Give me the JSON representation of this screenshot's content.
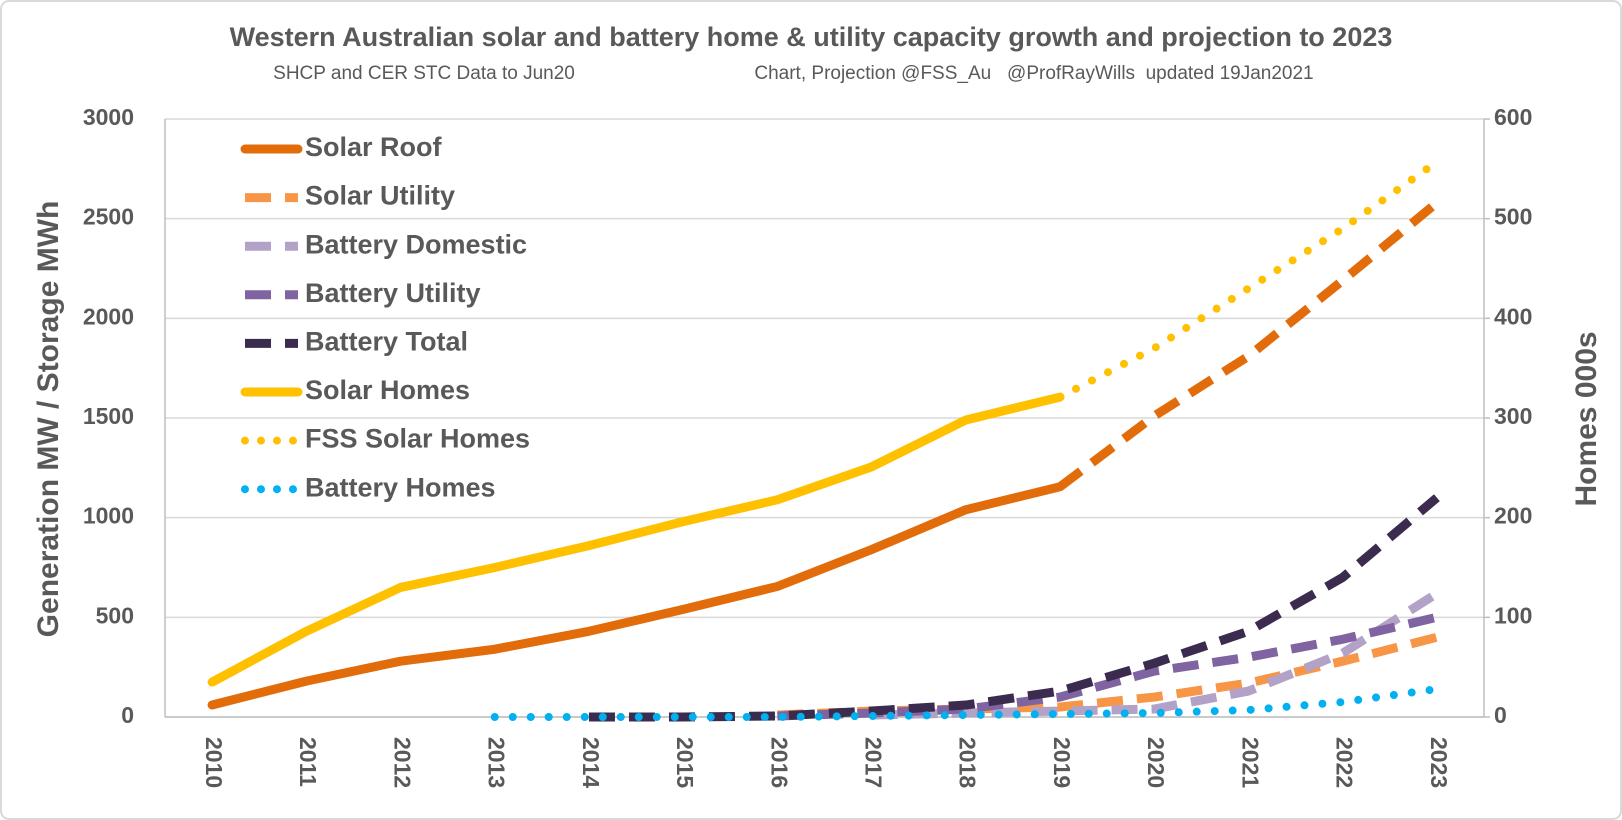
{
  "chart_data": {
    "type": "line",
    "title": "Western Australian solar and battery home & utility capacity growth and projection to 2023",
    "subtitles": [
      "SHCP and CER STC Data to Jun20",
      "Chart, Projection @FSS_Au   @ProfRayWills  updated 19Jan2021"
    ],
    "y_label": "Generation MW / Storage MWh",
    "y2_label": "Homes 000s",
    "categories": [
      "2010",
      "2011",
      "2012",
      "2013",
      "2014",
      "2015",
      "2016",
      "2017",
      "2018",
      "2019",
      "2020",
      "2021",
      "2022",
      "2023"
    ],
    "ylim": [
      0,
      3000
    ],
    "yticks": [
      0,
      500,
      1000,
      1500,
      2000,
      2500,
      3000
    ],
    "y2lim": [
      0,
      600
    ],
    "y2ticks": [
      0,
      100,
      200,
      300,
      400,
      500,
      600
    ],
    "grid": true,
    "legend": "upper left",
    "series": [
      {
        "name": "Solar Roof",
        "color": "#e36c0a",
        "dash": "solid",
        "dash_from": "2019",
        "values": [
          60,
          180,
          280,
          340,
          430,
          540,
          655,
          840,
          1040,
          1155,
          1510,
          1810,
          2190,
          2580
        ]
      },
      {
        "name": "Solar Utility",
        "color": "#f79646",
        "dash": "dashed",
        "values": [
          null,
          null,
          null,
          null,
          null,
          null,
          10,
          30,
          40,
          50,
          100,
          170,
          280,
          400
        ]
      },
      {
        "name": "Battery Domestic",
        "color": "#b3a2c7",
        "dash": "dashed",
        "values": [
          null,
          null,
          null,
          null,
          null,
          null,
          null,
          10,
          20,
          30,
          40,
          130,
          320,
          620
        ]
      },
      {
        "name": "Battery Utility",
        "color": "#8064a2",
        "dash": "dashed",
        "values": [
          null,
          null,
          null,
          null,
          null,
          null,
          5,
          20,
          40,
          100,
          230,
          300,
          390,
          500
        ]
      },
      {
        "name": "Battery Total",
        "color": "#3b2c4f",
        "dash": "dashed",
        "values": [
          null,
          null,
          null,
          null,
          0,
          0,
          5,
          30,
          60,
          130,
          270,
          430,
          700,
          1100
        ]
      },
      {
        "name": "Solar Homes",
        "color": "#ffc000",
        "dash": "solid",
        "axis": "y2",
        "values": [
          35,
          86,
          130,
          150,
          172,
          196,
          218,
          251,
          298,
          321,
          null,
          null,
          null,
          null
        ]
      },
      {
        "name": "FSS Solar Homes",
        "color": "#ffc000",
        "dash": "dotted",
        "axis": "y2",
        "values": [
          null,
          null,
          null,
          null,
          null,
          null,
          null,
          null,
          null,
          321,
          370,
          430,
          490,
          557
        ]
      },
      {
        "name": "Battery Homes",
        "color": "#00b0f0",
        "dash": "dotted",
        "axis": "y2",
        "values": [
          null,
          null,
          null,
          0,
          0,
          0,
          0,
          1,
          2,
          3,
          4,
          7,
          15,
          28
        ]
      }
    ]
  }
}
